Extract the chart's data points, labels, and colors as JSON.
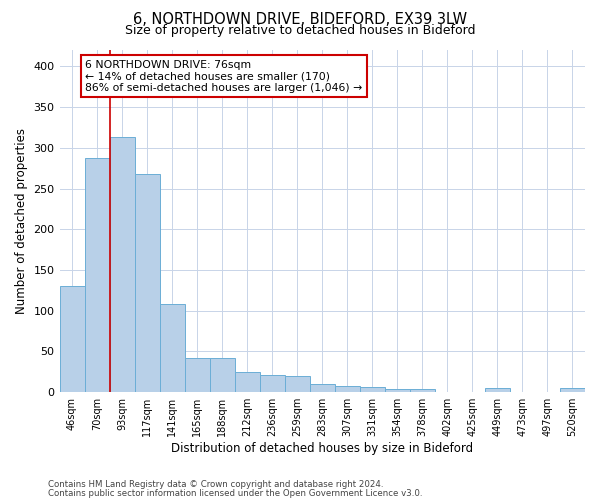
{
  "title_line1": "6, NORTHDOWN DRIVE, BIDEFORD, EX39 3LW",
  "title_line2": "Size of property relative to detached houses in Bideford",
  "xlabel": "Distribution of detached houses by size in Bideford",
  "ylabel": "Number of detached properties",
  "categories": [
    "46sqm",
    "70sqm",
    "93sqm",
    "117sqm",
    "141sqm",
    "165sqm",
    "188sqm",
    "212sqm",
    "236sqm",
    "259sqm",
    "283sqm",
    "307sqm",
    "331sqm",
    "354sqm",
    "378sqm",
    "402sqm",
    "425sqm",
    "449sqm",
    "473sqm",
    "497sqm",
    "520sqm"
  ],
  "values": [
    130,
    288,
    313,
    268,
    108,
    42,
    42,
    25,
    21,
    20,
    10,
    8,
    7,
    4,
    4,
    0,
    0,
    5,
    0,
    0,
    5
  ],
  "bar_color": "#b8d0e8",
  "bar_edge_color": "#6baed6",
  "red_line_x": 1.5,
  "annotation_text": "6 NORTHDOWN DRIVE: 76sqm\n← 14% of detached houses are smaller (170)\n86% of semi-detached houses are larger (1,046) →",
  "annotation_box_color": "#ffffff",
  "annotation_border_color": "#cc0000",
  "ylim": [
    0,
    420
  ],
  "yticks": [
    0,
    50,
    100,
    150,
    200,
    250,
    300,
    350,
    400
  ],
  "footer_line1": "Contains HM Land Registry data © Crown copyright and database right 2024.",
  "footer_line2": "Contains public sector information licensed under the Open Government Licence v3.0.",
  "background_color": "#ffffff",
  "grid_color": "#c8d4e8",
  "figsize": [
    6.0,
    5.0
  ],
  "dpi": 100
}
